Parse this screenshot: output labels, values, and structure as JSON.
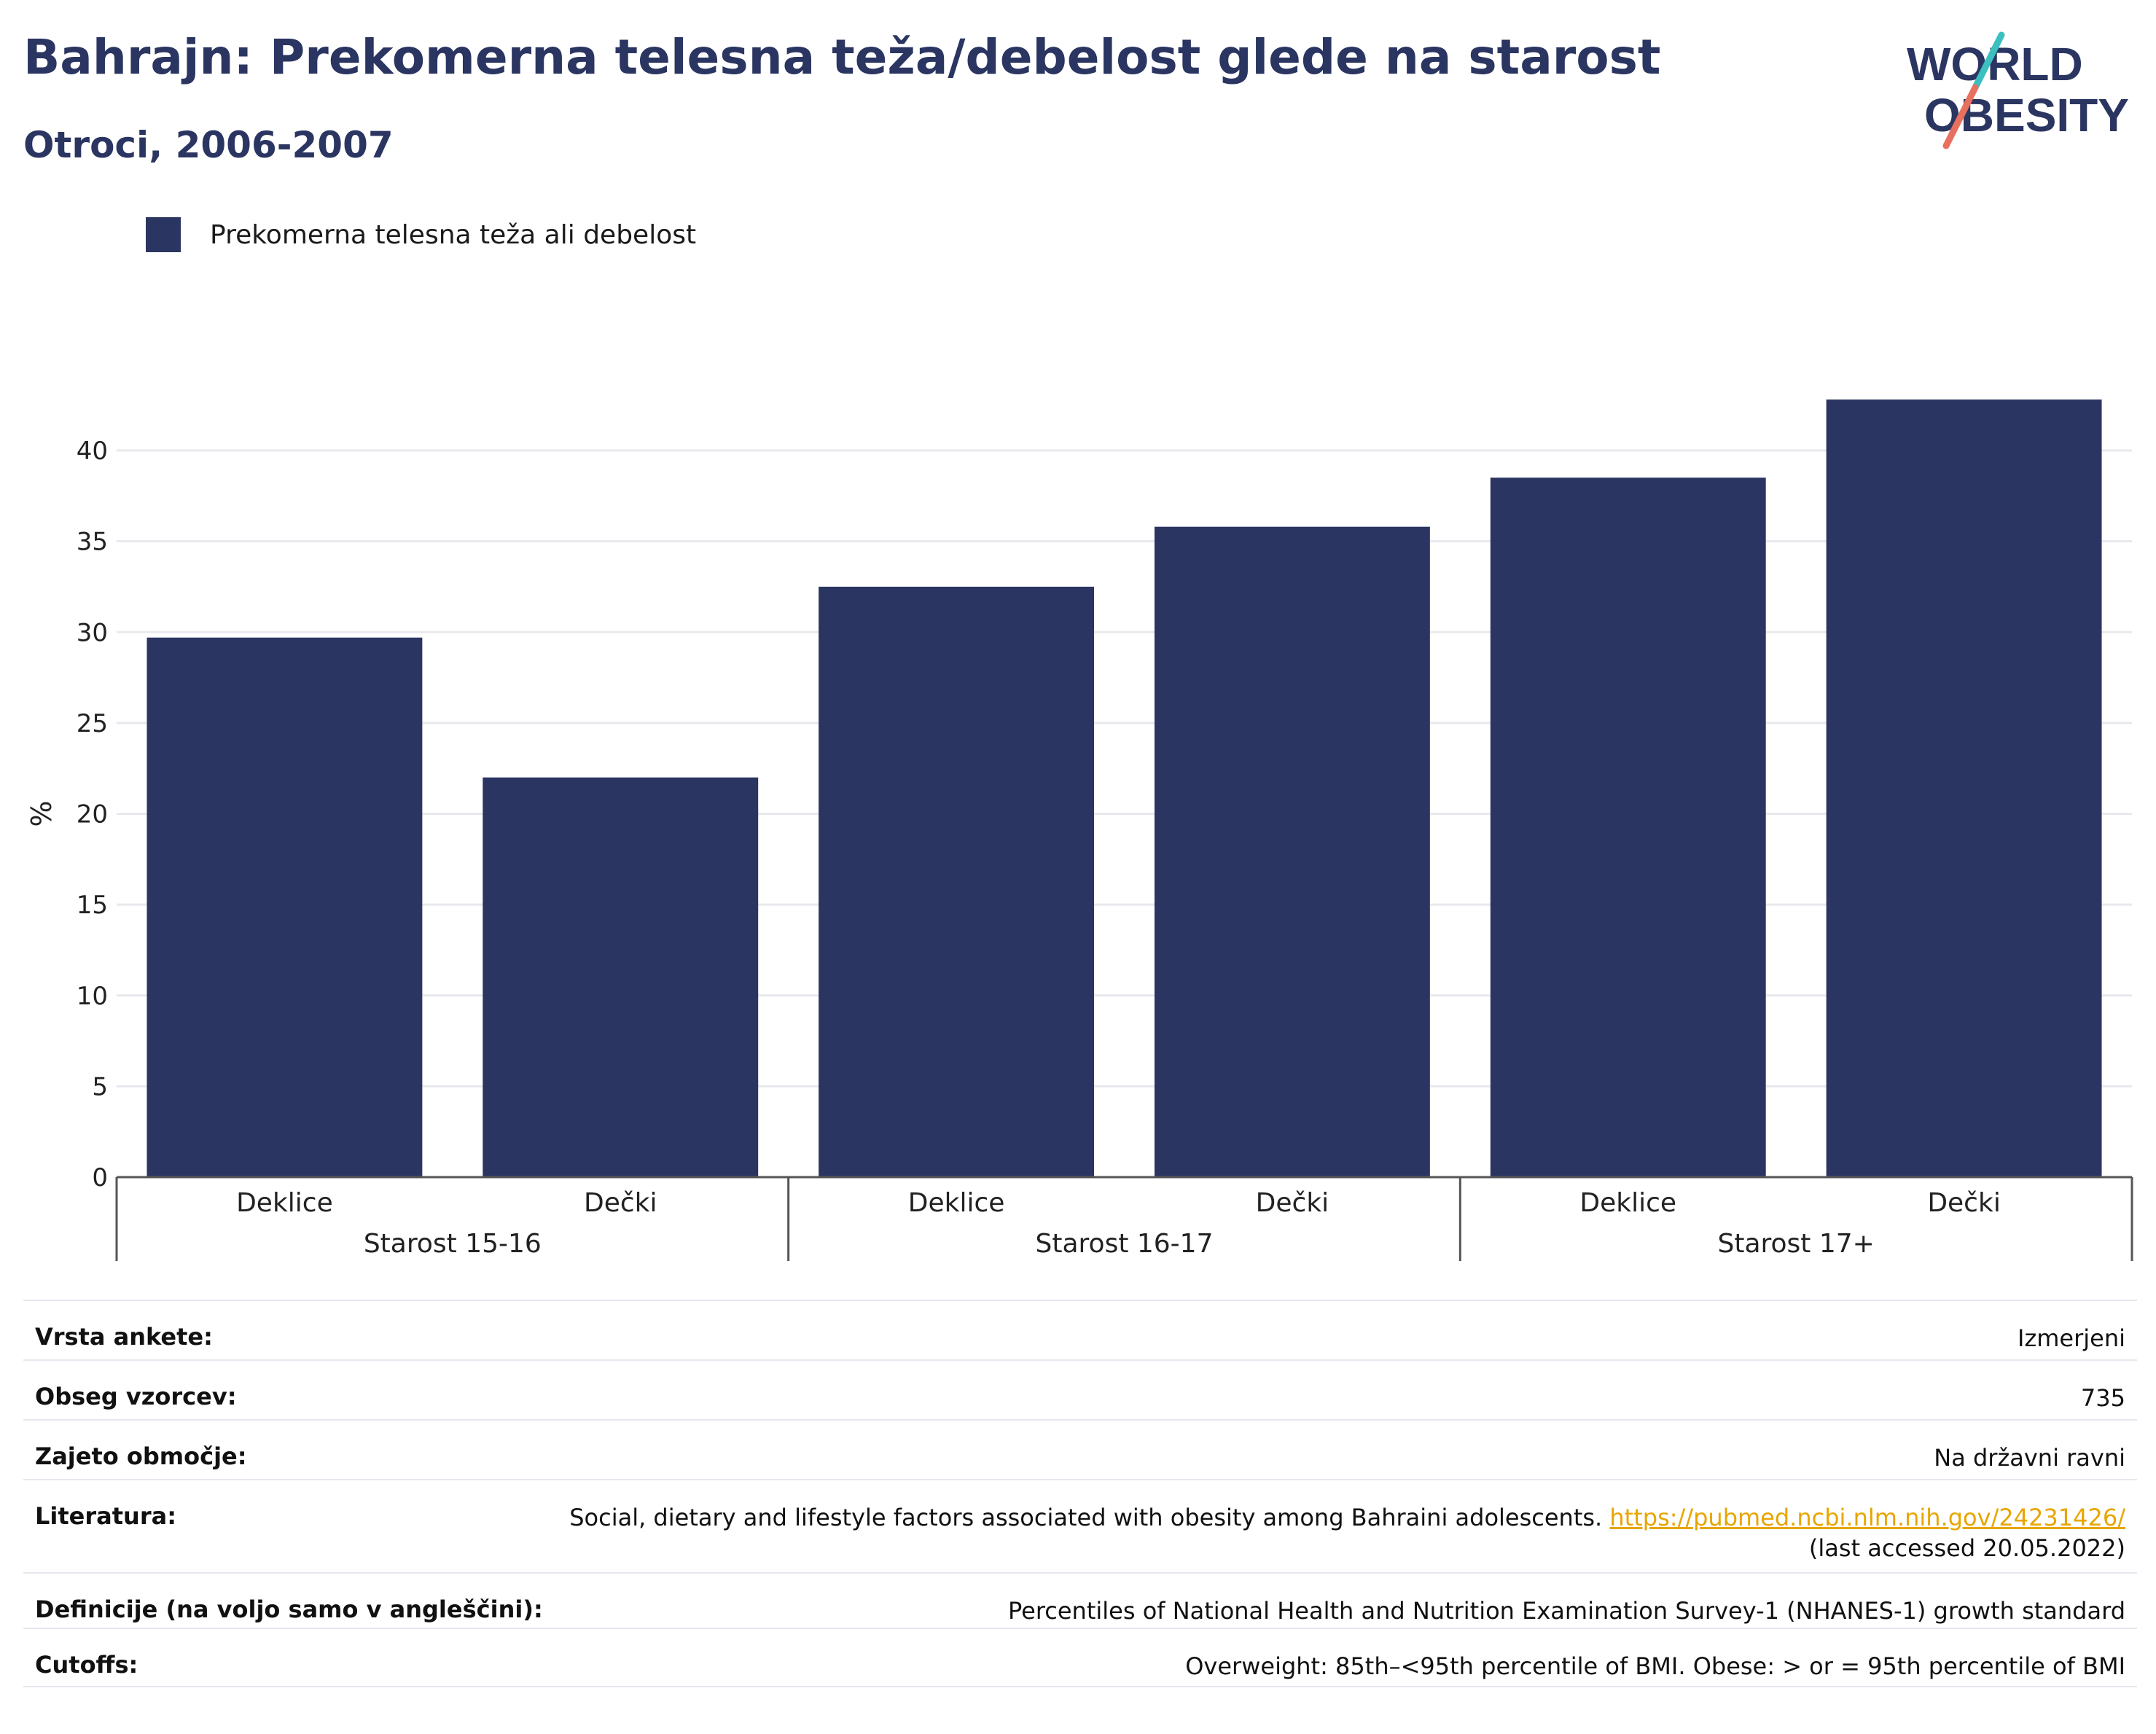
{
  "header": {
    "title": "Bahrajn: Prekomerna telesna teža/debelost glede na starost",
    "subtitle": "Otroci, 2006-2007"
  },
  "logo": {
    "line1": "WORLD",
    "line2": "OBESITY",
    "colors": {
      "text": "#2b3561",
      "slash_top": "#3bbfbf",
      "slash_bottom": "#e8705e"
    }
  },
  "legend": {
    "items": [
      {
        "label": "Prekomerna telesna teža ali debelost",
        "color": "#2b3561"
      }
    ]
  },
  "chart_data": {
    "type": "bar",
    "ylabel": "%",
    "ylim": [
      0,
      43
    ],
    "yticks": [
      0,
      5,
      10,
      15,
      20,
      25,
      30,
      35,
      40
    ],
    "grid": true,
    "legend_position": "top-left",
    "bar_color": "#2b3561",
    "groups": [
      "Starost 15-16",
      "Starost 16-17",
      "Starost 17+"
    ],
    "categories": [
      "Deklice",
      "Dečki",
      "Deklice",
      "Dečki",
      "Deklice",
      "Dečki"
    ],
    "series": [
      {
        "name": "Prekomerna telesna teža ali debelost",
        "values": [
          29.7,
          22.0,
          32.5,
          35.8,
          38.5,
          42.8
        ]
      }
    ]
  },
  "info": {
    "rows": [
      {
        "label": "Vrsta ankete:",
        "value": "Izmerjeni"
      },
      {
        "label": "Obseg vzorcev:",
        "value": "735"
      },
      {
        "label": "Zajeto območje:",
        "value": "Na državni ravni"
      },
      {
        "label": "Literatura:",
        "value": "Social, dietary and lifestyle factors associated with obesity among Bahraini adolescents. ",
        "link": "https://pubmed.ncbi.nlm.nih.gov/24231426/",
        "note": "(last accessed 20.05.2022)"
      },
      {
        "label": "Definicije (na voljo samo v angleščini):",
        "value": "Percentiles of National Health and Nutrition Examination Survey-1 (NHANES-1) growth standard"
      },
      {
        "label": "Cutoffs:",
        "value": "Overweight: 85th–<95th percentile of BMI. Obese: > or = 95th percentile of BMI"
      }
    ]
  }
}
